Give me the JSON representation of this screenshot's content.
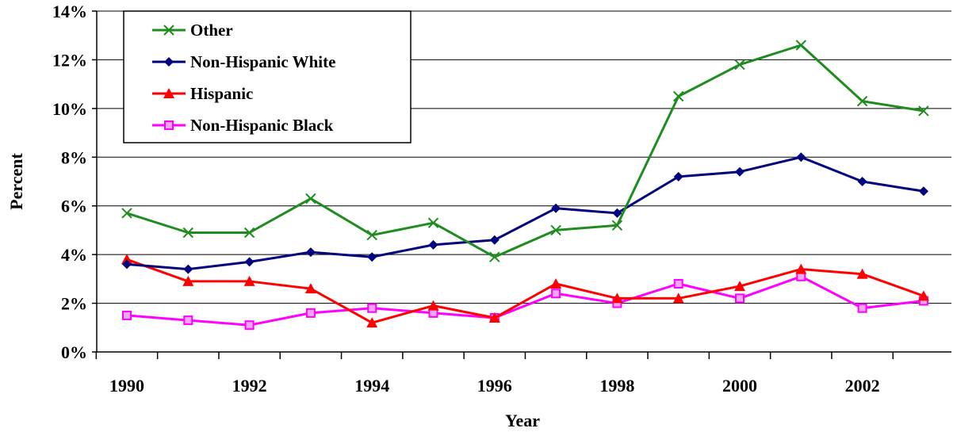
{
  "chart_data": {
    "type": "line",
    "title": "",
    "xlabel": "Year",
    "ylabel": "Percent",
    "x": [
      1990,
      1991,
      1992,
      1993,
      1994,
      1995,
      1996,
      1997,
      1998,
      1999,
      2000,
      2001,
      2002,
      2003
    ],
    "x_tick_labels": [
      "1990",
      "1992",
      "1994",
      "1996",
      "1998",
      "2000",
      "2002"
    ],
    "y_tick_labels": [
      "0%",
      "2%",
      "4%",
      "6%",
      "8%",
      "10%",
      "12%",
      "14%"
    ],
    "ylim": [
      0,
      14
    ],
    "grid": "horizontal",
    "legend_position": "top-left",
    "series": [
      {
        "name": "Other",
        "color": "#1e8c1e",
        "marker": "x",
        "values": [
          5.7,
          4.9,
          4.9,
          6.3,
          4.8,
          5.3,
          3.9,
          5.0,
          5.2,
          10.5,
          11.8,
          12.6,
          10.3,
          9.9
        ]
      },
      {
        "name": "Non-Hispanic White",
        "color": "#00007f",
        "marker": "diamond",
        "values": [
          3.6,
          3.4,
          3.7,
          4.1,
          3.9,
          4.4,
          4.6,
          5.9,
          5.7,
          7.2,
          7.4,
          8.0,
          7.0,
          6.6
        ]
      },
      {
        "name": "Hispanic",
        "color": "#ff0000",
        "marker": "triangle",
        "values": [
          3.8,
          2.9,
          2.9,
          2.6,
          1.2,
          1.9,
          1.4,
          2.8,
          2.2,
          2.2,
          2.7,
          3.4,
          3.2,
          2.3
        ]
      },
      {
        "name": "Non-Hispanic Black",
        "color": "#ff00ff",
        "marker": "square",
        "values": [
          1.5,
          1.3,
          1.1,
          1.6,
          1.8,
          1.6,
          1.4,
          2.4,
          2.0,
          2.8,
          2.2,
          3.1,
          1.8,
          2.1
        ]
      }
    ]
  }
}
